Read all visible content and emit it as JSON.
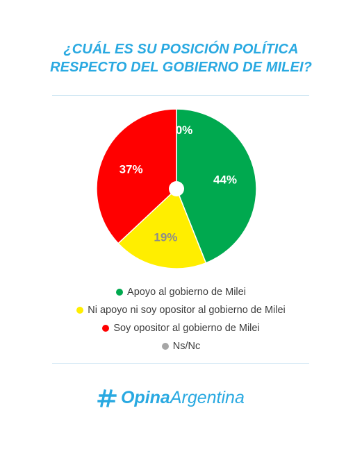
{
  "title": {
    "line1": "¿CUÁL ES SU POSICIÓN POLÍTICA",
    "line2": "RESPECTO DEL GOBIERNO DE MILEI?"
  },
  "chart_data": {
    "type": "pie",
    "title": "¿CUÁL ES SU POSICIÓN POLÍTICA RESPECTO DEL GOBIERNO DE MILEI?",
    "slices": [
      {
        "name": "Apoyo al gobierno de Milei",
        "value": 44,
        "label": "44%",
        "color": "#00a94f"
      },
      {
        "name": "Ni apoyo ni soy opositor al gobierno de Milei",
        "value": 19,
        "label": "19%",
        "color": "#ffee00"
      },
      {
        "name": "Soy opositor al gobierno de Milei",
        "value": 37,
        "label": "37%",
        "color": "#ff0000"
      },
      {
        "name": "Ns/Nc",
        "value": 0,
        "label": "0%",
        "color": "#a6a6a6"
      }
    ],
    "legend_position": "bottom"
  },
  "brand": {
    "part1": "Opina",
    "part2": "Argentina",
    "icon": "hashtag-icon",
    "color": "#29a9e1"
  }
}
